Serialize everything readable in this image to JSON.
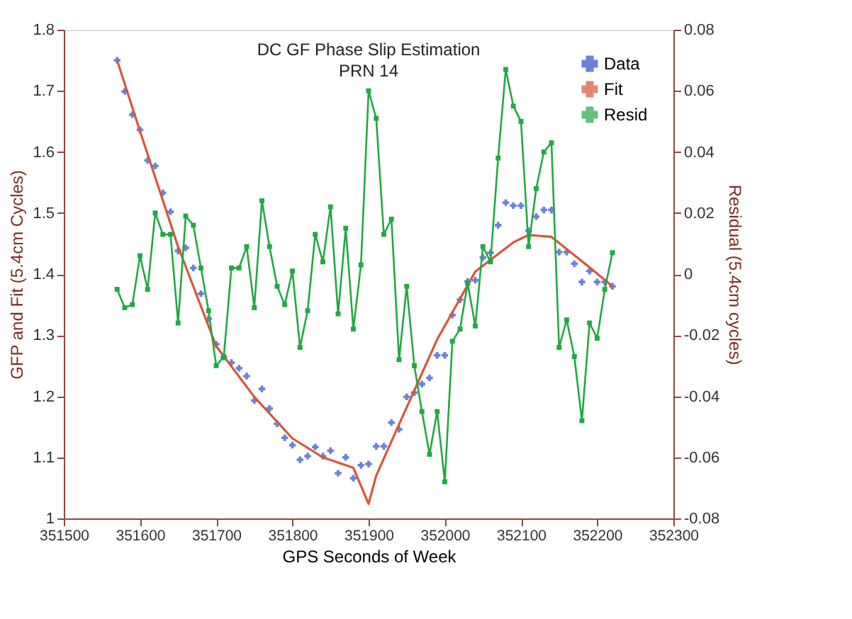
{
  "chart_data": {
    "type": "line",
    "title": "DC GF Phase Slip Estimation",
    "subtitle": "PRN 14",
    "xlabel": "GPS Seconds of Week",
    "ylabel": "GFP and Fit (5.4cm Cycles)",
    "y2label": "Residual (5.4cm cycles)",
    "xlim": [
      351500,
      352300
    ],
    "xticks": [
      351500,
      351600,
      351700,
      351800,
      351900,
      352000,
      352100,
      352200,
      352300
    ],
    "ylim": [
      1,
      1.8
    ],
    "yticks": [
      1,
      1.1,
      1.2,
      1.3,
      1.4,
      1.5,
      1.6,
      1.7,
      1.8
    ],
    "y2lim": [
      -0.08,
      0.08
    ],
    "y2ticks": [
      -0.08,
      -0.06,
      -0.04,
      -0.02,
      0,
      0.02,
      0.04,
      0.06,
      0.08
    ],
    "grid": false,
    "legend": "top right",
    "series": [
      {
        "name": "Data",
        "type": "scatter",
        "marker": "cross",
        "color": "#2a4fc8",
        "x": [
          351570,
          351580,
          351590,
          351600,
          351610,
          351620,
          351630,
          351640,
          351650,
          351660,
          351670,
          351680,
          351690,
          351700,
          351710,
          351720,
          351730,
          351740,
          351750,
          351760,
          351770,
          351780,
          351790,
          351800,
          351810,
          351820,
          351830,
          351840,
          351850,
          351860,
          351870,
          351880,
          351890,
          351900,
          351910,
          351920,
          351930,
          351940,
          351950,
          351960,
          351970,
          351980,
          351990,
          352000,
          352010,
          352020,
          352030,
          352040,
          352050,
          352060,
          352070,
          352080,
          352090,
          352100,
          352110,
          352120,
          352130,
          352140,
          352150,
          352160,
          352170,
          352180,
          352190,
          352200,
          352210,
          352220
        ],
        "values": [
          1.75,
          1.699,
          1.661,
          1.636,
          1.586,
          1.577,
          1.533,
          1.502,
          1.438,
          1.443,
          1.41,
          1.368,
          1.327,
          1.285,
          1.264,
          1.255,
          1.246,
          1.233,
          1.193,
          1.212,
          1.18,
          1.155,
          1.132,
          1.12,
          1.096,
          1.102,
          1.117,
          1.102,
          1.111,
          1.074,
          1.1,
          1.066,
          1.087,
          1.089,
          1.118,
          1.118,
          1.157,
          1.146,
          1.199,
          1.206,
          1.22,
          1.23,
          1.267,
          1.267,
          1.333,
          1.358,
          1.388,
          1.39,
          1.427,
          1.435,
          1.48,
          1.517,
          1.512,
          1.512,
          1.471,
          1.494,
          1.505,
          1.505,
          1.436,
          1.436,
          1.417,
          1.387,
          1.405,
          1.387,
          1.387,
          1.38
        ]
      },
      {
        "name": "Fit",
        "marker": "none",
        "color": "#d4573a",
        "x": [
          351570,
          351600,
          351650,
          351700,
          351750,
          351800,
          351840,
          351880,
          351900,
          351910,
          351940,
          351990,
          352040,
          352090,
          352110,
          352140,
          352190,
          352220
        ],
        "values": [
          1.75,
          1.634,
          1.445,
          1.282,
          1.199,
          1.131,
          1.1,
          1.083,
          1.024,
          1.07,
          1.154,
          1.293,
          1.404,
          1.452,
          1.464,
          1.461,
          1.411,
          1.38
        ]
      },
      {
        "name": "Resid",
        "marker": "square",
        "axis": "y2",
        "color": "#22a845",
        "x": [
          351570,
          351580,
          351590,
          351600,
          351610,
          351620,
          351630,
          351640,
          351650,
          351660,
          351670,
          351680,
          351690,
          351700,
          351710,
          351720,
          351730,
          351740,
          351750,
          351760,
          351770,
          351780,
          351790,
          351800,
          351810,
          351820,
          351830,
          351840,
          351850,
          351860,
          351870,
          351880,
          351890,
          351900,
          351910,
          351920,
          351930,
          351940,
          351950,
          351960,
          351970,
          351980,
          351990,
          352000,
          352010,
          352020,
          352030,
          352040,
          352050,
          352060,
          352070,
          352080,
          352090,
          352100,
          352110,
          352120,
          352130,
          352140,
          352150,
          352160,
          352170,
          352180,
          352190,
          352200,
          352210,
          352220
        ],
        "values": [
          -0.005,
          -0.011,
          -0.01,
          0.006,
          -0.005,
          0.02,
          0.013,
          0.013,
          -0.016,
          0.019,
          0.016,
          0.002,
          -0.012,
          -0.03,
          -0.027,
          0.002,
          0.002,
          0.009,
          -0.011,
          0.024,
          0.009,
          -0.004,
          -0.01,
          0.001,
          -0.024,
          -0.012,
          0.013,
          0.004,
          0.022,
          -0.013,
          0.015,
          -0.018,
          0.003,
          0.06,
          0.051,
          0.013,
          0.018,
          -0.028,
          -0.004,
          -0.03,
          -0.045,
          -0.059,
          -0.045,
          -0.068,
          -0.022,
          -0.018,
          -0.003,
          -0.017,
          0.009,
          0.004,
          0.038,
          0.067,
          0.055,
          0.05,
          0.009,
          0.028,
          0.04,
          0.043,
          -0.024,
          -0.015,
          -0.027,
          -0.048,
          -0.016,
          -0.021,
          -0.005,
          0.007
        ]
      }
    ]
  }
}
